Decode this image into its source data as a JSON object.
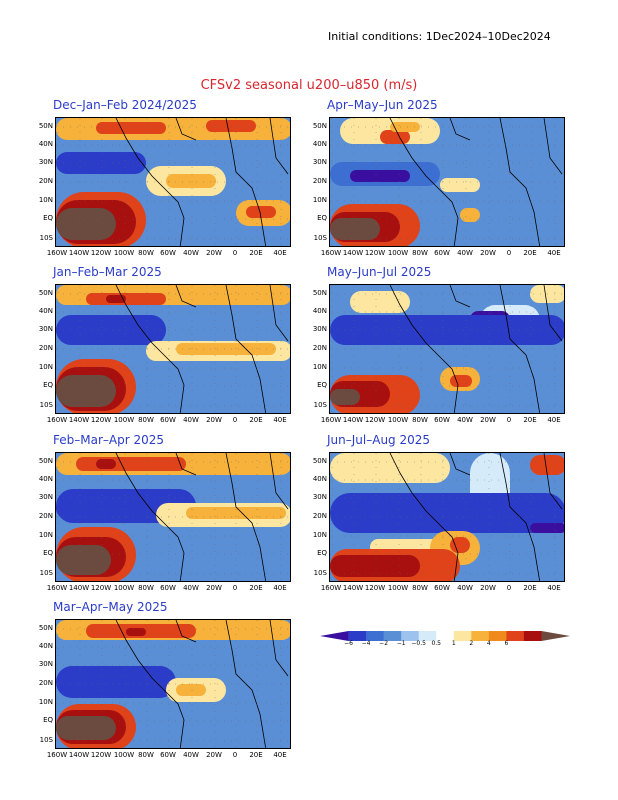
{
  "initial_conditions": "Initial conditions: 1Dec2024–10Dec2024",
  "title": "CFSv2 seasonal u200–u850 (m/s)",
  "lat_labels": [
    "50N",
    "40N",
    "30N",
    "20N",
    "10N",
    "EQ",
    "10S"
  ],
  "lon_labels": [
    "160W",
    "140W",
    "120W",
    "100W",
    "80W",
    "60W",
    "40W",
    "20W",
    "0",
    "20E",
    "40E"
  ],
  "panels": [
    {
      "title": "Dec–Jan–Feb 2024/2025"
    },
    {
      "title": "Apr–May–Jun 2025"
    },
    {
      "title": "Jan–Feb–Mar 2025"
    },
    {
      "title": "May–Jun–Jul 2025"
    },
    {
      "title": "Feb–Mar–Apr 2025"
    },
    {
      "title": "Jun–Jul–Aug 2025"
    },
    {
      "title": "Mar–Apr–May 2025"
    }
  ],
  "colorbar": {
    "labels": [
      "−6",
      "−4",
      "−2",
      "−1",
      "−0.5",
      "0.5",
      "1",
      "2",
      "4",
      "6"
    ],
    "colors": [
      "#3a0fa0",
      "#2a3cc8",
      "#3d6fd2",
      "#5a8fd6",
      "#9dc2ee",
      "#d6ebfa",
      "#ffffff",
      "#fde7a0",
      "#f7b23b",
      "#f08a1d",
      "#e0421a",
      "#a80f0f",
      "#6b4a3f"
    ]
  }
}
